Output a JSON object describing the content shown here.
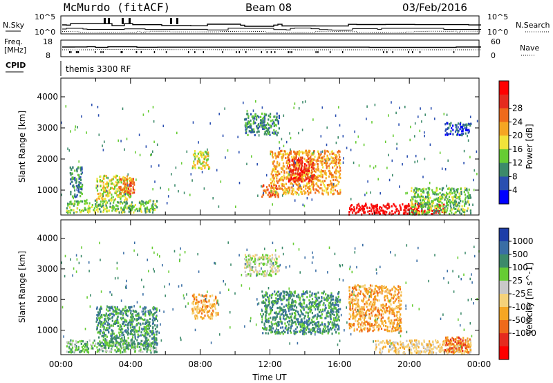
{
  "header": {
    "station": "McMurdo (fitACF)",
    "beam": "Beam 08",
    "date": "03/Feb/2016"
  },
  "top_panels": {
    "nsky_label": "N.Sky",
    "nsearch_label": "N.Search",
    "nsky_ticks": [
      "10^5",
      "10^0"
    ],
    "nsky_right_ticks": [
      "10^5",
      "10^0"
    ],
    "freq_label_line1": "Freq.",
    "freq_label_line2": "[MHz]",
    "freq_ticks": [
      "18",
      "8"
    ],
    "nave_label": "Nave",
    "nave_ticks": [
      "60",
      "0"
    ],
    "cpid_label": "CPID",
    "cpid_value": "themis 3300 RF"
  },
  "chart_data": [
    {
      "type": "heatmap",
      "title": "",
      "ylabel": "Slant Range [km]",
      "ylim": [
        200,
        4600
      ],
      "yticks": [
        1000,
        2000,
        3000,
        4000
      ],
      "xlim": [
        0,
        24
      ],
      "xticks": [
        0,
        2,
        4,
        6,
        8,
        10,
        12,
        14,
        16,
        18,
        20,
        22,
        24
      ],
      "colorbar": {
        "label": "Power [dB]",
        "ticks": [
          "4",
          "8",
          "12",
          "16",
          "20",
          "24",
          "28"
        ],
        "colors": [
          "#0000ff",
          "#2a4fb0",
          "#3c8a6a",
          "#66cc33",
          "#f2e33b",
          "#f5a623",
          "#ef6a1a",
          "#e52b1e",
          "#ff0000"
        ]
      },
      "echo_regions": [
        {
          "t": [
            0.3,
            5.5
          ],
          "r": [
            300,
            700
          ],
          "level": 3
        },
        {
          "t": [
            0.5,
            1.2
          ],
          "r": [
            800,
            1800
          ],
          "level": 2
        },
        {
          "t": [
            2.0,
            4.0
          ],
          "r": [
            700,
            1500
          ],
          "level": 4
        },
        {
          "t": [
            3.3,
            4.2
          ],
          "r": [
            900,
            1400
          ],
          "level": 6
        },
        {
          "t": [
            7.5,
            8.5
          ],
          "r": [
            1700,
            2300
          ],
          "level": 4
        },
        {
          "t": [
            10.5,
            12.5
          ],
          "r": [
            2800,
            3500
          ],
          "level": 2
        },
        {
          "t": [
            11.5,
            12.5
          ],
          "r": [
            800,
            1200
          ],
          "level": 6
        },
        {
          "t": [
            12.0,
            16.0
          ],
          "r": [
            900,
            2300
          ],
          "level": 5
        },
        {
          "t": [
            13.0,
            14.5
          ],
          "r": [
            1300,
            2100
          ],
          "level": 7
        },
        {
          "t": [
            16.5,
            22.0
          ],
          "r": [
            250,
            600
          ],
          "level": 8
        },
        {
          "t": [
            20.0,
            23.5
          ],
          "r": [
            250,
            1100
          ],
          "level": 3
        },
        {
          "t": [
            22.0,
            23.5
          ],
          "r": [
            2800,
            3200
          ],
          "level": 1
        }
      ]
    },
    {
      "type": "heatmap",
      "title": "",
      "ylabel": "Slant Range [km]",
      "xlabel": "Time UT",
      "ylim": [
        200,
        4600
      ],
      "yticks": [
        1000,
        2000,
        3000,
        4000
      ],
      "xlim": [
        0,
        24
      ],
      "xticks": [
        0,
        2,
        4,
        6,
        8,
        10,
        12,
        14,
        16,
        18,
        20,
        22,
        24
      ],
      "xtick_labels": [
        "00:00",
        "04:00",
        "08:00",
        "12:00",
        "16:00",
        "20:00",
        "00:00"
      ],
      "colorbar": {
        "label": "Velocity [m s^-1]",
        "ticks": [
          "1000",
          "500",
          "100",
          "25",
          "-25",
          "-100",
          "-500",
          "-1000"
        ],
        "colors": [
          "#1e3ea8",
          "#3a6ea5",
          "#3c8a6a",
          "#66cc33",
          "#c8c8c8",
          "#f5d27a",
          "#f5a623",
          "#ef6a1a",
          "#e52b1e",
          "#ff0000"
        ]
      },
      "echo_regions": [
        {
          "t": [
            0.3,
            5.5
          ],
          "r": [
            300,
            700
          ],
          "level": 3
        },
        {
          "t": [
            2.0,
            5.5
          ],
          "r": [
            500,
            1800
          ],
          "level": 2
        },
        {
          "t": [
            7.5,
            9.0
          ],
          "r": [
            1400,
            2200
          ],
          "level": 6
        },
        {
          "t": [
            10.5,
            12.5
          ],
          "r": [
            2800,
            3500
          ],
          "level": 4
        },
        {
          "t": [
            11.5,
            16.0
          ],
          "r": [
            900,
            2300
          ],
          "level": 2
        },
        {
          "t": [
            16.5,
            19.5
          ],
          "r": [
            1000,
            2500
          ],
          "level": 6
        },
        {
          "t": [
            18.0,
            23.5
          ],
          "r": [
            250,
            700
          ],
          "level": 5
        },
        {
          "t": [
            22.0,
            23.5
          ],
          "r": [
            300,
            800
          ],
          "level": 7
        }
      ]
    }
  ]
}
